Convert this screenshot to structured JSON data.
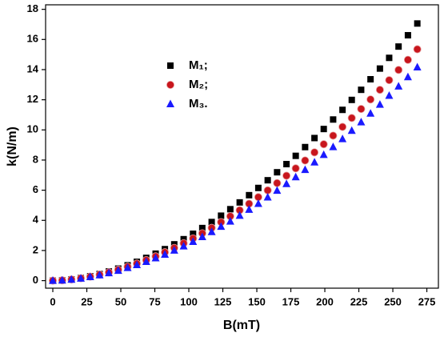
{
  "chart_data": {
    "type": "scatter",
    "xlabel": "B(mT)",
    "ylabel": "k(N/m)",
    "x": [
      0,
      6.9,
      13.7,
      20.6,
      27.5,
      34.4,
      41.2,
      48.1,
      55.0,
      61.8,
      68.7,
      75.6,
      82.4,
      89.3,
      96.2,
      103.1,
      109.9,
      116.8,
      123.7,
      130.5,
      137.4,
      144.3,
      151.1,
      158.0,
      164.9,
      171.8,
      178.6,
      185.5,
      192.4,
      199.2,
      206.1,
      213.0,
      219.8,
      226.7,
      233.6,
      240.5,
      247.3,
      254.2,
      261.1,
      268.0
    ],
    "series": [
      {
        "name": "M₁;",
        "color": "#000000",
        "marker": "square",
        "values": [
          0,
          0.025,
          0.086,
          0.177,
          0.296,
          0.441,
          0.609,
          0.8,
          1.02,
          1.25,
          1.51,
          1.79,
          2.09,
          2.41,
          2.75,
          3.11,
          3.49,
          3.89,
          4.31,
          4.74,
          5.19,
          5.67,
          6.15,
          6.66,
          7.19,
          7.73,
          8.28,
          8.86,
          9.46,
          10.06,
          10.69,
          11.33,
          11.99,
          12.66,
          13.36,
          14.07,
          14.78,
          15.53,
          16.28,
          17.06
        ]
      },
      {
        "name": "M₂;",
        "color": "#c8161d",
        "marker": "circle",
        "values": [
          0,
          0.023,
          0.077,
          0.159,
          0.266,
          0.397,
          0.548,
          0.72,
          0.92,
          1.13,
          1.36,
          1.61,
          1.88,
          2.17,
          2.48,
          2.8,
          3.14,
          3.5,
          3.88,
          4.27,
          4.67,
          5.1,
          5.54,
          5.99,
          6.47,
          6.96,
          7.45,
          7.97,
          8.51,
          9.05,
          9.62,
          10.2,
          10.79,
          11.39,
          12.02,
          12.66,
          13.3,
          13.98,
          14.65,
          15.35
        ]
      },
      {
        "name": "M₃.",
        "color": "#1a1aff",
        "marker": "triangle",
        "values": [
          0,
          0.021,
          0.071,
          0.147,
          0.246,
          0.366,
          0.505,
          0.66,
          0.85,
          1.04,
          1.25,
          1.49,
          1.73,
          2.0,
          2.28,
          2.58,
          2.9,
          3.23,
          3.58,
          3.93,
          4.31,
          4.71,
          5.1,
          5.53,
          5.97,
          6.42,
          6.87,
          7.35,
          7.85,
          8.35,
          8.87,
          9.4,
          9.95,
          10.51,
          11.09,
          11.68,
          12.27,
          12.89,
          13.51,
          14.16
        ]
      }
    ],
    "xlim": [
      -5.3,
      283.5
    ],
    "xticks": [
      0,
      25,
      50,
      75,
      100,
      125,
      150,
      175,
      200,
      225,
      250,
      275
    ],
    "ylim": [
      -0.5,
      18.3
    ],
    "yticks": [
      0,
      2,
      4,
      6,
      8,
      10,
      12,
      14,
      16,
      18
    ],
    "grid": false,
    "legend": "upper left"
  }
}
